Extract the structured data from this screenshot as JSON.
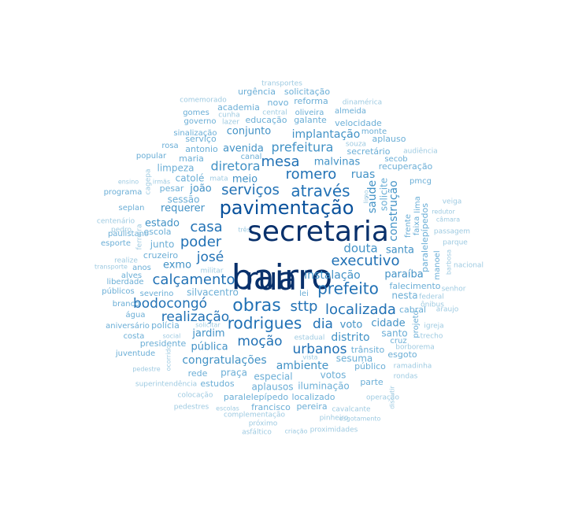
{
  "chart_data": {
    "type": "wordcloud",
    "title": "",
    "palette": [
      "#08306b",
      "#08519c",
      "#2171b5",
      "#4292c6",
      "#6baed6",
      "#9ecae1"
    ],
    "words": [
      {
        "text": "bairro",
        "weight": 100
      },
      {
        "text": "secretaria",
        "weight": 90
      },
      {
        "text": "rua",
        "weight": 88
      },
      {
        "text": "pavimentação",
        "weight": 62
      },
      {
        "text": "obras",
        "weight": 55
      },
      {
        "text": "prefeito",
        "weight": 52
      },
      {
        "text": "rodrigues",
        "weight": 50
      },
      {
        "text": "através",
        "weight": 48
      },
      {
        "text": "serviços",
        "weight": 47
      },
      {
        "text": "casa",
        "weight": 46
      },
      {
        "text": "poder",
        "weight": 46
      },
      {
        "text": "executivo",
        "weight": 45
      },
      {
        "text": "localizada",
        "weight": 45
      },
      {
        "text": "mesa",
        "weight": 44
      },
      {
        "text": "romero",
        "weight": 44
      },
      {
        "text": "calçamento",
        "weight": 43
      },
      {
        "text": "josé",
        "weight": 43
      },
      {
        "text": "sttp",
        "weight": 43
      },
      {
        "text": "moção",
        "weight": 42
      },
      {
        "text": "dia",
        "weight": 42
      },
      {
        "text": "realização",
        "weight": 40
      },
      {
        "text": "bodocongó",
        "weight": 40
      },
      {
        "text": "urbanos",
        "weight": 39
      },
      {
        "text": "diretora",
        "weight": 38
      },
      {
        "text": "prefeitura",
        "weight": 37
      },
      {
        "text": "douta",
        "weight": 36
      },
      {
        "text": "construção",
        "weight": 35
      },
      {
        "text": "instalação",
        "weight": 34
      },
      {
        "text": "congratulações",
        "weight": 34
      },
      {
        "text": "ambiente",
        "weight": 33
      },
      {
        "text": "requerer",
        "weight": 32
      },
      {
        "text": "implantação",
        "weight": 32
      },
      {
        "text": "ruas",
        "weight": 32
      },
      {
        "text": "saúde",
        "weight": 31
      },
      {
        "text": "distrito",
        "weight": 31
      },
      {
        "text": "paraíba",
        "weight": 31
      },
      {
        "text": "avenida",
        "weight": 30
      },
      {
        "text": "conjunto",
        "weight": 30
      },
      {
        "text": "joão",
        "weight": 30
      },
      {
        "text": "jardim",
        "weight": 30
      },
      {
        "text": "pública",
        "weight": 30
      },
      {
        "text": "voto",
        "weight": 30
      },
      {
        "text": "meio",
        "weight": 29
      },
      {
        "text": "estado",
        "weight": 29
      },
      {
        "text": "exmo",
        "weight": 29
      },
      {
        "text": "malvinas",
        "weight": 29
      },
      {
        "text": "santa",
        "weight": 29
      },
      {
        "text": "cidade",
        "weight": 28
      },
      {
        "text": "solicite",
        "weight": 28
      },
      {
        "text": "sesuma",
        "weight": 28
      },
      {
        "text": "votos",
        "weight": 28
      },
      {
        "text": "praça",
        "weight": 28
      },
      {
        "text": "especial",
        "weight": 28
      },
      {
        "text": "sessão",
        "weight": 27
      },
      {
        "text": "catolé",
        "weight": 27
      },
      {
        "text": "limpeza",
        "weight": 27
      },
      {
        "text": "junto",
        "weight": 27
      },
      {
        "text": "santo",
        "weight": 27
      },
      {
        "text": "nesta",
        "weight": 27
      },
      {
        "text": "cabral",
        "weight": 27
      },
      {
        "text": "presidente",
        "weight": 26
      },
      {
        "text": "silvacentro",
        "weight": 26
      },
      {
        "text": "iluminação",
        "weight": 26
      },
      {
        "text": "aplausos",
        "weight": 26
      },
      {
        "text": "paralelepípedos",
        "weight": 26
      },
      {
        "text": "recuperação",
        "weight": 26
      },
      {
        "text": "falecimento",
        "weight": 26
      },
      {
        "text": "público",
        "weight": 26
      },
      {
        "text": "trânsito",
        "weight": 26
      },
      {
        "text": "secretário",
        "weight": 25
      },
      {
        "text": "serviço",
        "weight": 25
      },
      {
        "text": "educação",
        "weight": 25
      },
      {
        "text": "galante",
        "weight": 25
      },
      {
        "text": "antonio",
        "weight": 25
      },
      {
        "text": "escola",
        "weight": 25
      },
      {
        "text": "cruzeiro",
        "weight": 25
      },
      {
        "text": "polícia",
        "weight": 25
      },
      {
        "text": "estudos",
        "weight": 25
      },
      {
        "text": "paralelepípedo",
        "weight": 25
      },
      {
        "text": "francisco",
        "weight": 25
      },
      {
        "text": "localizado",
        "weight": 25
      },
      {
        "text": "pesar",
        "weight": 24
      },
      {
        "text": "rede",
        "weight": 24
      },
      {
        "text": "esgoto",
        "weight": 24
      },
      {
        "text": "parte",
        "weight": 24
      },
      {
        "text": "pereira",
        "weight": 24
      },
      {
        "text": "aplauso",
        "weight": 24
      },
      {
        "text": "velocidade",
        "weight": 24
      },
      {
        "text": "reforma",
        "weight": 24
      },
      {
        "text": "urgência",
        "weight": 24
      },
      {
        "text": "solicitação",
        "weight": 24
      },
      {
        "text": "academia",
        "weight": 24
      },
      {
        "text": "novo",
        "weight": 24
      },
      {
        "text": "maria",
        "weight": 23
      },
      {
        "text": "rosa",
        "weight": 23
      },
      {
        "text": "popular",
        "weight": 23
      },
      {
        "text": "programa",
        "weight": 23
      },
      {
        "text": "seplan",
        "weight": 23
      },
      {
        "text": "paulistano",
        "weight": 23
      },
      {
        "text": "esporte",
        "weight": 23
      },
      {
        "text": "anos",
        "weight": 23
      },
      {
        "text": "alves",
        "weight": 23
      },
      {
        "text": "liberdade",
        "weight": 23
      },
      {
        "text": "públicos",
        "weight": 23
      },
      {
        "text": "severino",
        "weight": 23
      },
      {
        "text": "branco",
        "weight": 23
      },
      {
        "text": "água",
        "weight": 23
      },
      {
        "text": "aniversário",
        "weight": 23
      },
      {
        "text": "costa",
        "weight": 23
      },
      {
        "text": "juventude",
        "weight": 23
      },
      {
        "text": "lei",
        "weight": 23
      },
      {
        "text": "oliveira",
        "weight": 23
      },
      {
        "text": "almeida",
        "weight": 23
      },
      {
        "text": "gomes",
        "weight": 23
      },
      {
        "text": "governo",
        "weight": 23
      },
      {
        "text": "sinalização",
        "weight": 23
      },
      {
        "text": "comemorado",
        "weight": 23
      },
      {
        "text": "canal",
        "weight": 23
      },
      {
        "text": "monte",
        "weight": 23
      },
      {
        "text": "secob",
        "weight": 23
      },
      {
        "text": "pmcg",
        "weight": 23
      },
      {
        "text": "manoel",
        "weight": 23
      },
      {
        "text": "frente",
        "weight": 23
      },
      {
        "text": "faixa",
        "weight": 23
      },
      {
        "text": "lima",
        "weight": 23
      },
      {
        "text": "projeto",
        "weight": 23
      },
      {
        "text": "cruz",
        "weight": 23
      },
      {
        "text": "estadual",
        "weight": 23
      },
      {
        "text": "pinheiro",
        "weight": 23
      },
      {
        "text": "cavalcante",
        "weight": 23
      },
      {
        "text": "operação",
        "weight": 23
      },
      {
        "text": "rondas",
        "weight": 23
      },
      {
        "text": "ramadinha",
        "weight": 23
      },
      {
        "text": "borborema",
        "weight": 23
      },
      {
        "text": "trecho",
        "weight": 23
      },
      {
        "text": "igreja",
        "weight": 23
      },
      {
        "text": "federal",
        "weight": 23
      },
      {
        "text": "ônibus",
        "weight": 23
      },
      {
        "text": "araujo",
        "weight": 23
      },
      {
        "text": "veiga",
        "weight": 22
      },
      {
        "text": "redutor",
        "weight": 22
      },
      {
        "text": "câmara",
        "weight": 22
      },
      {
        "text": "passagem",
        "weight": 22
      },
      {
        "text": "parque",
        "weight": 22
      },
      {
        "text": "barbosa",
        "weight": 22
      },
      {
        "text": "nacional",
        "weight": 22
      },
      {
        "text": "senhor",
        "weight": 22
      },
      {
        "text": "audiência",
        "weight": 22
      },
      {
        "text": "dinamérica",
        "weight": 22
      },
      {
        "text": "transportes",
        "weight": 22
      },
      {
        "text": "central",
        "weight": 22
      },
      {
        "text": "cunha",
        "weight": 22
      },
      {
        "text": "lazer",
        "weight": 22
      },
      {
        "text": "souza",
        "weight": 22
      },
      {
        "text": "limo",
        "weight": 22
      },
      {
        "text": "mata",
        "weight": 22
      },
      {
        "text": "irmãs",
        "weight": 22
      },
      {
        "text": "cagepa",
        "weight": 22
      },
      {
        "text": "ensino",
        "weight": 22
      },
      {
        "text": "centenário",
        "weight": 22
      },
      {
        "text": "ferreira",
        "weight": 22
      },
      {
        "text": "pedro",
        "weight": 22
      },
      {
        "text": "três",
        "weight": 22
      },
      {
        "text": "realize",
        "weight": 22
      },
      {
        "text": "transporte",
        "weight": 22
      },
      {
        "text": "militar",
        "weight": 22
      },
      {
        "text": "solicitar",
        "weight": 22
      },
      {
        "text": "social",
        "weight": 22
      },
      {
        "text": "ocorrido",
        "weight": 22
      },
      {
        "text": "pedestre",
        "weight": 22
      },
      {
        "text": "superintendência",
        "weight": 22
      },
      {
        "text": "colocação",
        "weight": 22
      },
      {
        "text": "pedestres",
        "weight": 22
      },
      {
        "text": "escolas",
        "weight": 22
      },
      {
        "text": "complementação",
        "weight": 22
      },
      {
        "text": "próximo",
        "weight": 22
      },
      {
        "text": "asfáltico",
        "weight": 22
      },
      {
        "text": "criação",
        "weight": 22
      },
      {
        "text": "proximidades",
        "weight": 22
      },
      {
        "text": "esgotamento",
        "weight": 22
      },
      {
        "text": "discutir",
        "weight": 22
      },
      {
        "text": "vista",
        "weight": 22
      }
    ]
  }
}
